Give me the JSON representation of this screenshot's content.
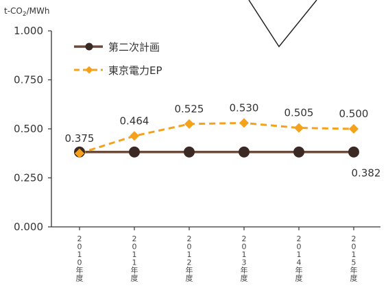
{
  "chart_data": {
    "type": "line",
    "ylabel_prefix": "t-CO",
    "ylabel_sub": "2",
    "ylabel_suffix": "/MWh",
    "ylim": [
      0,
      1
    ],
    "yticks": [
      "0.000",
      "0.250",
      "0.500",
      "0.750",
      "1.000"
    ],
    "categories": [
      "2010年度",
      "2011年度",
      "2012年度",
      "2013年度",
      "2014年度",
      "2015年度"
    ],
    "series": [
      {
        "name": "第二次計画",
        "values": [
          0.382,
          0.382,
          0.382,
          0.382,
          0.382,
          0.382
        ],
        "color": "#6b4a3a",
        "marker_color": "#3b2a24",
        "style": "solid",
        "marker": "circle",
        "labels": [
          "",
          "",
          "",
          "",
          "",
          "0.382"
        ]
      },
      {
        "name": "東京電力EP",
        "values": [
          0.375,
          0.464,
          0.525,
          0.53,
          0.505,
          0.5
        ],
        "color": "#f5a11c",
        "marker_color": "#f5a11c",
        "style": "dashed",
        "marker": "diamond",
        "labels": [
          "0.375",
          "0.464",
          "0.525",
          "0.530",
          "0.505",
          "0.500"
        ]
      }
    ],
    "grid": false,
    "legend_position": "top-left"
  }
}
